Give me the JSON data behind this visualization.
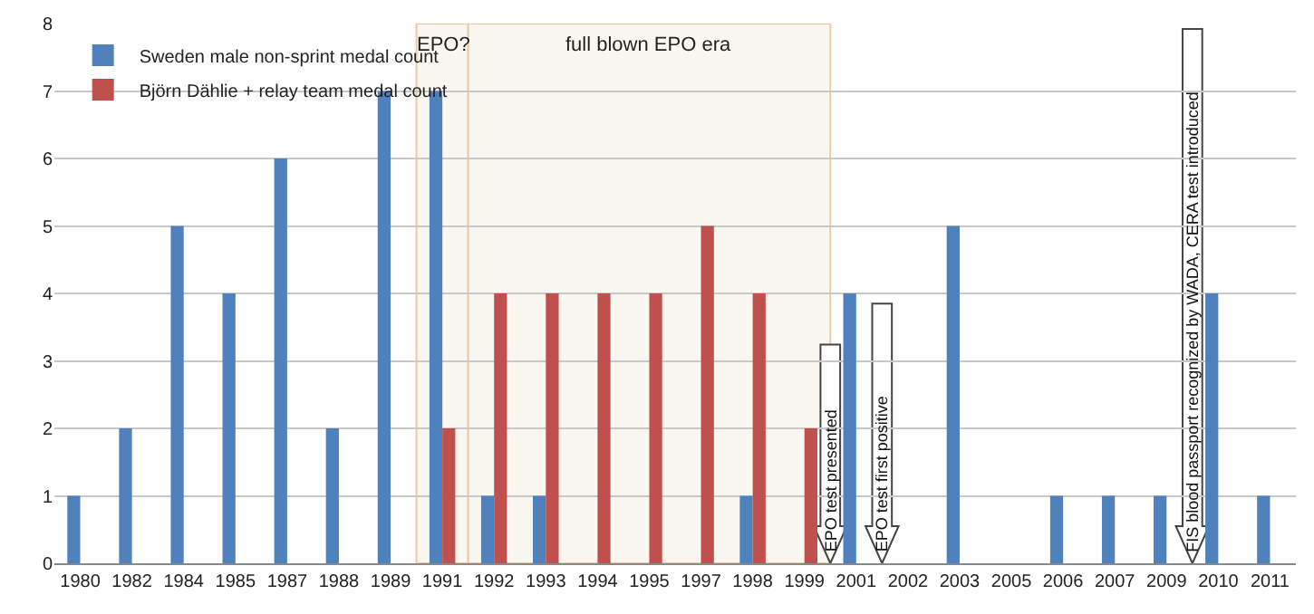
{
  "chart_data": {
    "type": "bar",
    "categories": [
      "1980",
      "1982",
      "1984",
      "1985",
      "1987",
      "1988",
      "1989",
      "1991",
      "1992",
      "1993",
      "1994",
      "1995",
      "1997",
      "1998",
      "1999",
      "2001",
      "2002",
      "2003",
      "2005",
      "2006",
      "2007",
      "2009",
      "2010",
      "2011"
    ],
    "series": [
      {
        "name": "Sweden male non-sprint medal count",
        "color": "#4f81bd",
        "values": [
          1,
          2,
          5,
          4,
          6,
          2,
          7,
          7,
          1,
          1,
          0,
          0,
          0,
          1,
          0,
          4,
          0,
          5,
          0,
          1,
          1,
          1,
          4,
          1
        ]
      },
      {
        "name": "Björn Dählie + relay team medal count",
        "color": "#c0504d",
        "values": [
          0,
          0,
          0,
          0,
          0,
          0,
          0,
          2,
          4,
          4,
          4,
          4,
          5,
          4,
          2,
          0,
          0,
          0,
          0,
          0,
          0,
          0,
          0,
          0
        ]
      }
    ],
    "ylim": [
      0,
      8
    ],
    "yticks": [
      0,
      1,
      2,
      3,
      4,
      5,
      6,
      7,
      8
    ],
    "grid": "y",
    "legend": "top left",
    "bands": [
      {
        "axis": "x",
        "from": "1991",
        "to": "1991",
        "label": "EPO?",
        "color": "#f9f7ef"
      },
      {
        "axis": "x",
        "from": "1992",
        "to": "1999",
        "label": "full blown EPO era",
        "color": "#f9f7ef"
      }
    ],
    "ref_lines": [
      {
        "axis": "x",
        "value": "2001",
        "label": "EPO test presented"
      },
      {
        "axis": "x",
        "value": "2002",
        "label": "EPO test first positive"
      },
      {
        "axis": "x",
        "value": "2010",
        "label": "FIS blood passport recognized by WADA, CERA test introduced"
      }
    ]
  }
}
